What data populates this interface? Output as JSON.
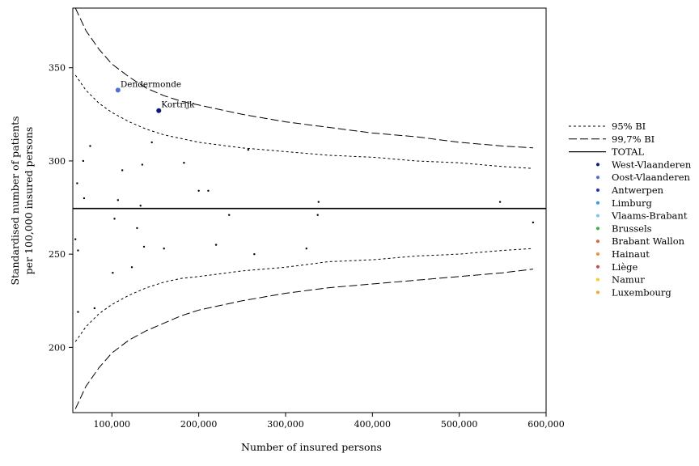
{
  "chart_data": {
    "type": "scatter",
    "xlabel": "Number of insured persons",
    "ylabel_lines": [
      "Standardised number of patients",
      "per 100,000 insured persons"
    ],
    "xlim": [
      55000,
      600000
    ],
    "ylim": [
      165,
      382
    ],
    "x_ticks": [
      100000,
      200000,
      300000,
      400000,
      500000,
      600000
    ],
    "x_tick_labels": [
      "100,000",
      "200,000",
      "300,000",
      "400,000",
      "500,000",
      "600,000"
    ],
    "y_ticks": [
      200,
      250,
      300,
      350
    ],
    "y_tick_labels": [
      "200",
      "250",
      "300",
      "350"
    ],
    "total": 274.5,
    "ci_95_upper": [
      [
        58000,
        346
      ],
      [
        70000,
        338
      ],
      [
        85000,
        331
      ],
      [
        100000,
        326
      ],
      [
        120000,
        321
      ],
      [
        140000,
        317
      ],
      [
        160000,
        314
      ],
      [
        180000,
        312
      ],
      [
        200000,
        310
      ],
      [
        250000,
        307
      ],
      [
        300000,
        305
      ],
      [
        350000,
        303
      ],
      [
        400000,
        302
      ],
      [
        450000,
        300
      ],
      [
        500000,
        299
      ],
      [
        550000,
        297
      ],
      [
        585000,
        296
      ]
    ],
    "ci_95_lower": [
      [
        58000,
        203
      ],
      [
        70000,
        211
      ],
      [
        85000,
        218
      ],
      [
        100000,
        223
      ],
      [
        120000,
        228
      ],
      [
        140000,
        232
      ],
      [
        160000,
        235
      ],
      [
        180000,
        237
      ],
      [
        200000,
        238
      ],
      [
        250000,
        241
      ],
      [
        300000,
        243
      ],
      [
        350000,
        246
      ],
      [
        400000,
        247
      ],
      [
        450000,
        249
      ],
      [
        500000,
        250
      ],
      [
        550000,
        252
      ],
      [
        585000,
        253
      ]
    ],
    "ci_997_upper": [
      [
        58000,
        382
      ],
      [
        70000,
        370
      ],
      [
        85000,
        360
      ],
      [
        100000,
        352
      ],
      [
        120000,
        345
      ],
      [
        140000,
        339
      ],
      [
        160000,
        335
      ],
      [
        180000,
        332
      ],
      [
        200000,
        330
      ],
      [
        250000,
        325
      ],
      [
        300000,
        321
      ],
      [
        350000,
        318
      ],
      [
        400000,
        315
      ],
      [
        450000,
        313
      ],
      [
        500000,
        310
      ],
      [
        550000,
        308
      ],
      [
        585000,
        307
      ]
    ],
    "ci_997_lower": [
      [
        58000,
        167
      ],
      [
        70000,
        179
      ],
      [
        85000,
        189
      ],
      [
        100000,
        197
      ],
      [
        120000,
        204
      ],
      [
        140000,
        209
      ],
      [
        160000,
        213
      ],
      [
        180000,
        217
      ],
      [
        200000,
        220
      ],
      [
        250000,
        225
      ],
      [
        300000,
        229
      ],
      [
        350000,
        232
      ],
      [
        400000,
        234
      ],
      [
        450000,
        236
      ],
      [
        500000,
        238
      ],
      [
        550000,
        240
      ],
      [
        585000,
        242
      ]
    ],
    "points": [
      {
        "x": 107000,
        "y": 338,
        "color": "#4a72cf",
        "label": "Dendermonde",
        "size": 3
      },
      {
        "x": 154000,
        "y": 327,
        "color": "#0a1a7a",
        "label": "Kortrijk",
        "size": 3
      },
      {
        "x": 75000,
        "y": 308,
        "color": "#000000",
        "size": 1.2
      },
      {
        "x": 146000,
        "y": 310,
        "color": "#000000",
        "size": 1.2
      },
      {
        "x": 67000,
        "y": 300,
        "color": "#000000",
        "size": 1.2
      },
      {
        "x": 135000,
        "y": 298,
        "color": "#000000",
        "size": 1.2
      },
      {
        "x": 183000,
        "y": 299,
        "color": "#000000",
        "size": 1.2
      },
      {
        "x": 257000,
        "y": 306,
        "color": "#000000",
        "size": 1.2
      },
      {
        "x": 112000,
        "y": 295,
        "color": "#000000",
        "size": 1.2
      },
      {
        "x": 60000,
        "y": 288,
        "color": "#000000",
        "size": 1.2
      },
      {
        "x": 200000,
        "y": 284,
        "color": "#000000",
        "size": 1.2
      },
      {
        "x": 211000,
        "y": 284,
        "color": "#000000",
        "size": 1.2
      },
      {
        "x": 68000,
        "y": 280,
        "color": "#000000",
        "size": 1.2
      },
      {
        "x": 107000,
        "y": 279,
        "color": "#000000",
        "size": 1.2
      },
      {
        "x": 133000,
        "y": 276,
        "color": "#000000",
        "size": 1.2
      },
      {
        "x": 338000,
        "y": 278,
        "color": "#000000",
        "size": 1.2
      },
      {
        "x": 547000,
        "y": 278,
        "color": "#000000",
        "size": 1.2
      },
      {
        "x": 235000,
        "y": 271,
        "color": "#000000",
        "size": 1.2
      },
      {
        "x": 337000,
        "y": 271,
        "color": "#000000",
        "size": 1.2
      },
      {
        "x": 103000,
        "y": 269,
        "color": "#000000",
        "size": 1.2
      },
      {
        "x": 585000,
        "y": 267,
        "color": "#000000",
        "size": 1.2
      },
      {
        "x": 129000,
        "y": 264,
        "color": "#000000",
        "size": 1.2
      },
      {
        "x": 58000,
        "y": 258,
        "color": "#000000",
        "size": 1.2
      },
      {
        "x": 220000,
        "y": 255,
        "color": "#000000",
        "size": 1.2
      },
      {
        "x": 137000,
        "y": 254,
        "color": "#000000",
        "size": 1.2
      },
      {
        "x": 160000,
        "y": 253,
        "color": "#000000",
        "size": 1.2
      },
      {
        "x": 324000,
        "y": 253,
        "color": "#000000",
        "size": 1.2
      },
      {
        "x": 61000,
        "y": 252,
        "color": "#000000",
        "size": 1.2
      },
      {
        "x": 264000,
        "y": 250,
        "color": "#000000",
        "size": 1.2
      },
      {
        "x": 123000,
        "y": 243,
        "color": "#000000",
        "size": 1.2
      },
      {
        "x": 101000,
        "y": 240,
        "color": "#000000",
        "size": 1.2
      },
      {
        "x": 80000,
        "y": 221,
        "color": "#000000",
        "size": 1.2
      },
      {
        "x": 61000,
        "y": 219,
        "color": "#000000",
        "size": 1.2
      }
    ],
    "legend": [
      {
        "label": "95% BI",
        "kind": "line",
        "dash": "3,3"
      },
      {
        "label": "99,7% BI",
        "kind": "line",
        "dash": "10,4"
      },
      {
        "label": "TOTAL",
        "kind": "line",
        "dash": ""
      },
      {
        "label": "West-Vlaanderen",
        "kind": "dot",
        "color": "#0a1a7a"
      },
      {
        "label": "Oost-Vlaanderen",
        "kind": "dot",
        "color": "#4a72cf"
      },
      {
        "label": "Antwerpen",
        "kind": "dot",
        "color": "#1f2fd6"
      },
      {
        "label": "Limburg",
        "kind": "dot",
        "color": "#3b97d8"
      },
      {
        "label": "Vlaams-Brabant",
        "kind": "dot",
        "color": "#7cc6ea"
      },
      {
        "label": "Brussels",
        "kind": "dot",
        "color": "#3cb04a"
      },
      {
        "label": "Brabant Wallon",
        "kind": "dot",
        "color": "#d86a3a"
      },
      {
        "label": "Hainaut",
        "kind": "dot",
        "color": "#f0902e"
      },
      {
        "label": "Liège",
        "kind": "dot",
        "color": "#c0504d"
      },
      {
        "label": "Namur",
        "kind": "dot",
        "color": "#f2d21a"
      },
      {
        "label": "Luxembourg",
        "kind": "dot",
        "color": "#f0a830"
      }
    ]
  }
}
